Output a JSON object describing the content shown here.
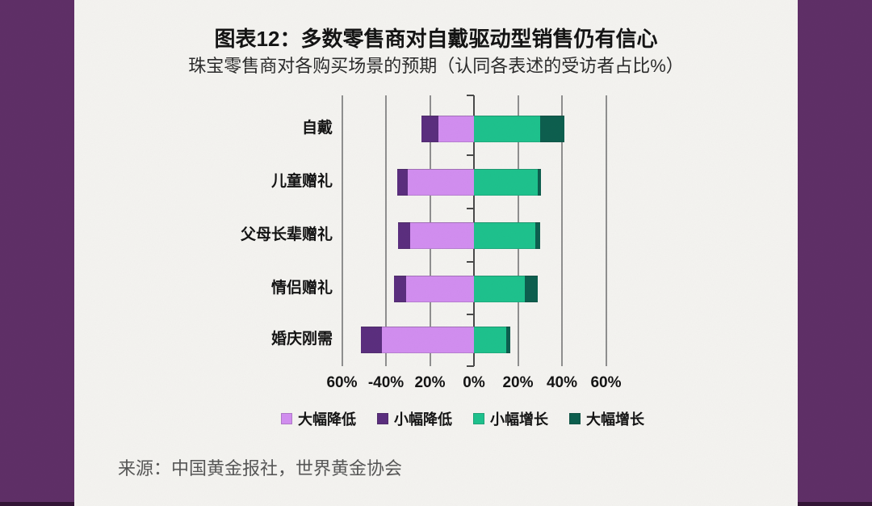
{
  "frame": {
    "side_border_color": "#5f2f67",
    "side_border_shadow_color": "#331536",
    "paper_color": "#f4f3f0"
  },
  "header": {
    "title": "图表12：多数零售商对自戴驱动型销售仍有信心",
    "subtitle": "珠宝零售商对各购买场景的预期（认同各表述的受访者占比%）"
  },
  "footer": {
    "source": "来源：中国黄金报社，世界黄金协会"
  },
  "chart_data": {
    "type": "bar",
    "variant": "diverging-stacked-horizontal",
    "title": "图表12：多数零售商对自戴驱动型销售仍有信心",
    "subtitle": "珠宝零售商对各购买场景的预期（认同各表述的受访者占比%）",
    "unit": "%",
    "categories": [
      "自戴",
      "儿童赠礼",
      "父母长辈赠礼",
      "情侣赠礼",
      "婚庆刚需"
    ],
    "series": [
      {
        "name": "大幅降低",
        "color": "#d28ef0",
        "side": "negative",
        "stack_order": 1,
        "values": [
          16,
          30,
          29,
          31,
          42
        ]
      },
      {
        "name": "小幅降低",
        "color": "#5b2e7e",
        "side": "negative",
        "stack_order": 2,
        "values": [
          8,
          5,
          5.5,
          5.5,
          9.5
        ]
      },
      {
        "name": "小幅增长",
        "color": "#1ec28d",
        "side": "positive",
        "stack_order": 1,
        "values": [
          30,
          29,
          28,
          23,
          14.5
        ]
      },
      {
        "name": "大幅增长",
        "color": "#0d5f4e",
        "side": "positive",
        "stack_order": 2,
        "values": [
          11,
          1.5,
          2,
          6,
          2
        ]
      }
    ],
    "x_ticks": [
      {
        "label": "60%",
        "value": -60
      },
      {
        "label": "-40%",
        "value": -40
      },
      {
        "label": "20%",
        "value": -20
      },
      {
        "label": "0%",
        "value": 0
      },
      {
        "label": "20%",
        "value": 20
      },
      {
        "label": "40%",
        "value": 40
      },
      {
        "label": "60%",
        "value": 60
      }
    ],
    "xlim": [
      -60,
      60
    ],
    "grid": "vertical",
    "legend_position": "bottom"
  }
}
